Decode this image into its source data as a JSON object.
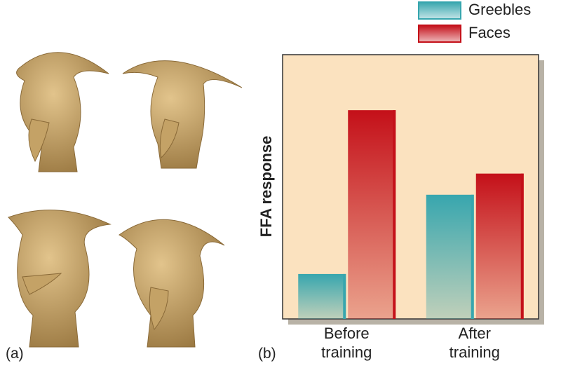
{
  "panel_labels": [
    "(a)",
    "(b)"
  ],
  "chart_data": {
    "type": "bar",
    "y_label": "FFA response",
    "categories": [
      "Before training",
      "After training"
    ],
    "series": [
      {
        "name": "Greebles",
        "color": "#37a6ae",
        "values": [
          17,
          47
        ]
      },
      {
        "name": "Faces",
        "color": "#c41019",
        "values": [
          79,
          55
        ]
      }
    ],
    "ylim": [
      0,
      100
    ],
    "legend": "top-right"
  }
}
